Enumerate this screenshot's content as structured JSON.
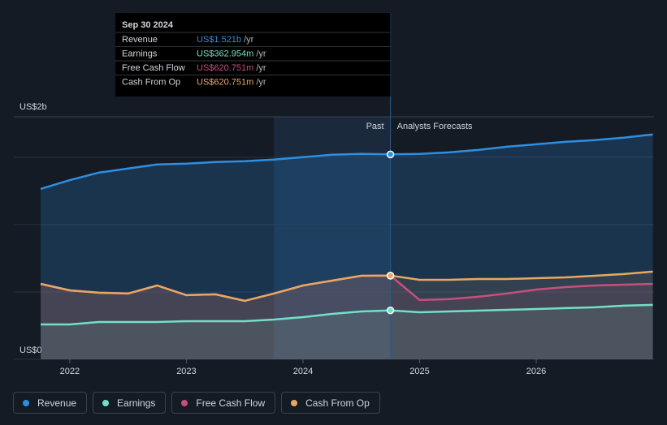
{
  "chart_data": {
    "type": "line",
    "y_top_label": "US$2b",
    "xlim": [
      2021.52,
      2027.01
    ],
    "xticks": [
      2022,
      2023,
      2024,
      2025,
      2026
    ],
    "ylim": [
      0,
      1.8
    ],
    "yticks": [
      {
        "value": 0,
        "label": "US$0"
      },
      {
        "value": 0.5,
        "label": null
      },
      {
        "value": 1,
        "label": null
      },
      {
        "value": 1.5,
        "label": null
      }
    ],
    "grid": true,
    "past_end": 2024.75,
    "past_label": "Past",
    "forecast_label": "Analysts Forecasts",
    "x": [
      2021.75,
      2022,
      2022.25,
      2022.5,
      2022.75,
      2023,
      2023.25,
      2023.5,
      2023.75,
      2024,
      2024.25,
      2024.5,
      2024.75,
      2025,
      2025.25,
      2025.5,
      2025.75,
      2026,
      2026.25,
      2026.5,
      2026.75,
      2027
    ],
    "series": [
      {
        "name": "Revenue",
        "color": "#2d8fe2",
        "values": [
          1.265,
          1.33,
          1.386,
          1.416,
          1.446,
          1.452,
          1.464,
          1.47,
          1.482,
          1.5,
          1.518,
          1.524,
          1.521,
          1.524,
          1.536,
          1.554,
          1.578,
          1.596,
          1.614,
          1.627,
          1.645,
          1.669
        ]
      },
      {
        "name": "Earnings",
        "color": "#72e0c9",
        "values": [
          0.259,
          0.259,
          0.277,
          0.277,
          0.277,
          0.283,
          0.283,
          0.283,
          0.295,
          0.313,
          0.337,
          0.355,
          0.363,
          0.349,
          0.355,
          0.361,
          0.367,
          0.373,
          0.38,
          0.386,
          0.398,
          0.404
        ]
      },
      {
        "name": "Free Cash Flow",
        "color": "#c84f7d",
        "values": [
          0.56,
          0.512,
          0.494,
          0.488,
          0.548,
          0.476,
          0.482,
          0.434,
          0.488,
          0.548,
          0.584,
          0.62,
          0.621,
          0.44,
          0.446,
          0.464,
          0.488,
          0.518,
          0.536,
          0.548,
          0.554,
          0.56
        ]
      },
      {
        "name": "Cash From Op",
        "color": "#e8a863",
        "values": [
          0.56,
          0.512,
          0.494,
          0.488,
          0.548,
          0.476,
          0.482,
          0.434,
          0.488,
          0.548,
          0.584,
          0.62,
          0.621,
          0.59,
          0.59,
          0.596,
          0.596,
          0.602,
          0.608,
          0.62,
          0.633,
          0.651
        ]
      }
    ],
    "tooltip": {
      "date": "Sep 30 2024",
      "index": 12,
      "rows": [
        {
          "value_label": "US$1.521b",
          "unit": "/yr"
        },
        {
          "value_label": "US$362.954m",
          "unit": "/yr"
        },
        {
          "value_label": "US$620.751m",
          "unit": "/yr"
        },
        {
          "value_label": "US$620.751m",
          "unit": "/yr"
        }
      ]
    }
  }
}
